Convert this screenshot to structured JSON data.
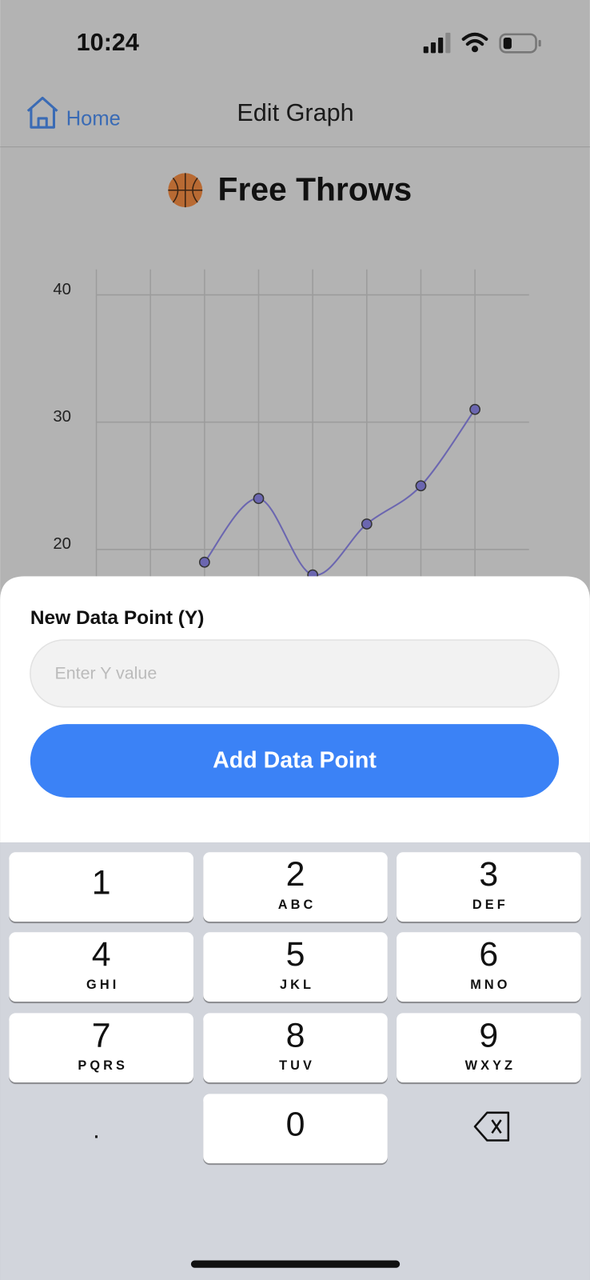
{
  "status_bar": {
    "time": "10:24"
  },
  "nav": {
    "back": "Home",
    "title": "Edit Graph"
  },
  "chart_data": {
    "type": "line",
    "title": "Free Throws",
    "categories": [
      null,
      null,
      null,
      null,
      null,
      null,
      null,
      null
    ],
    "series": [
      {
        "name": null,
        "color": "#6b66b0",
        "values": [
          null,
          null,
          19,
          24,
          18,
          22,
          25,
          31
        ]
      }
    ],
    "ylim": [
      10,
      42
    ],
    "yticks": [
      20,
      30,
      40
    ],
    "grid": true
  },
  "sheet": {
    "label": "New Data Point (Y)",
    "placeholder": "Enter Y value",
    "button": "Add Data Point"
  },
  "keyboard": {
    "keys": [
      {
        "digit": "1"
      },
      {
        "digit": "2",
        "letters": "ABC"
      },
      {
        "digit": "3",
        "letters": "DEF"
      },
      {
        "digit": "4",
        "letters": "GHI"
      },
      {
        "digit": "5",
        "letters": "JKL"
      },
      {
        "digit": "6",
        "letters": "MNO"
      },
      {
        "digit": "7",
        "letters": "PQRS"
      },
      {
        "digit": "8",
        "letters": "TUV"
      },
      {
        "digit": "9",
        "letters": "WXYZ"
      },
      {
        "digit": "0"
      }
    ],
    "dot": "."
  }
}
